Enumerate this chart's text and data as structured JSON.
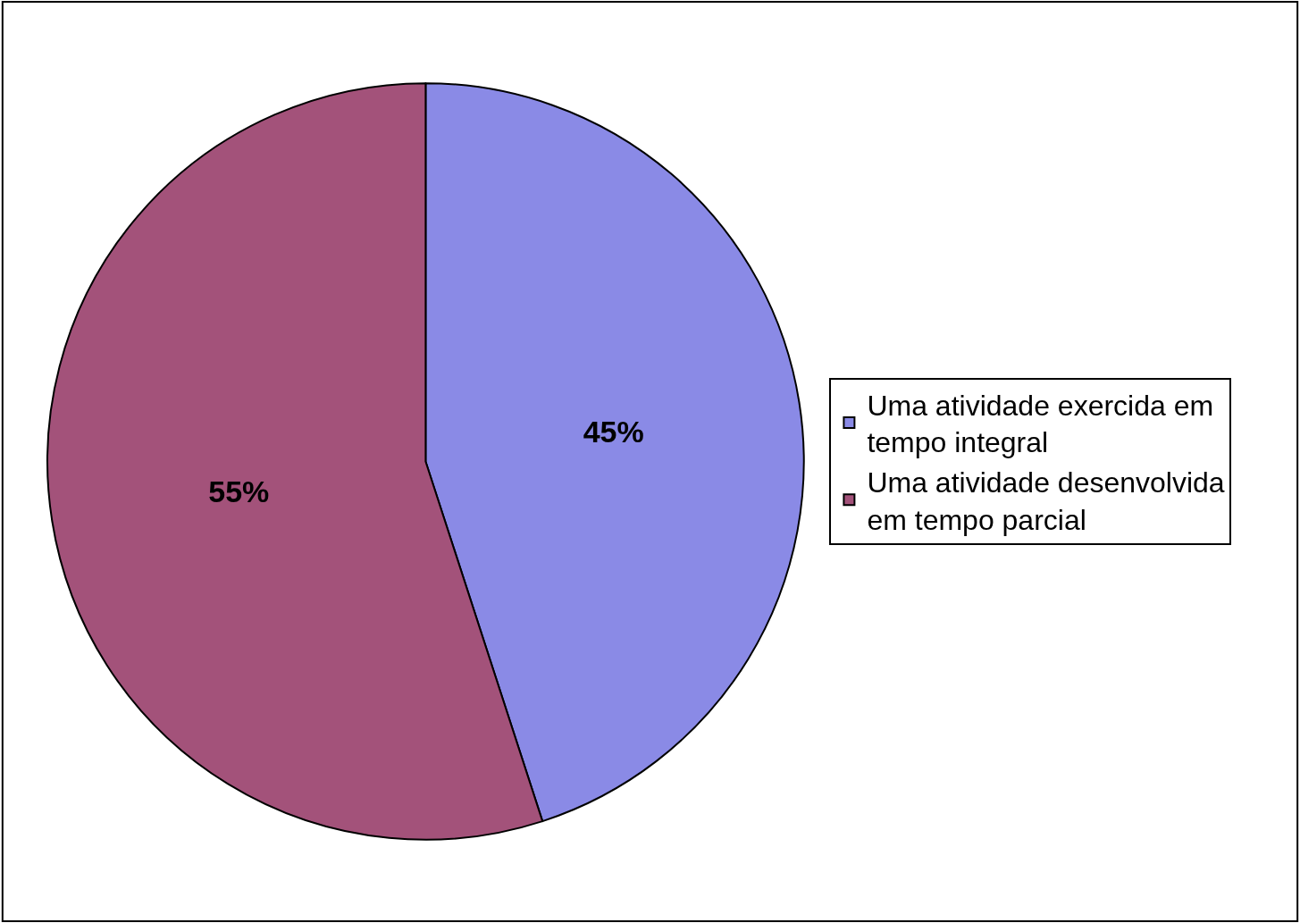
{
  "chart_data": {
    "type": "pie",
    "categories": [
      "Uma atividade exercida em tempo integral",
      "Uma atividade desenvolvida em tempo parcial"
    ],
    "values": [
      45,
      55
    ],
    "colors": [
      "#8a8ae6",
      "#a3527a"
    ],
    "value_labels": [
      "45%",
      "55%"
    ],
    "legend": "right"
  }
}
